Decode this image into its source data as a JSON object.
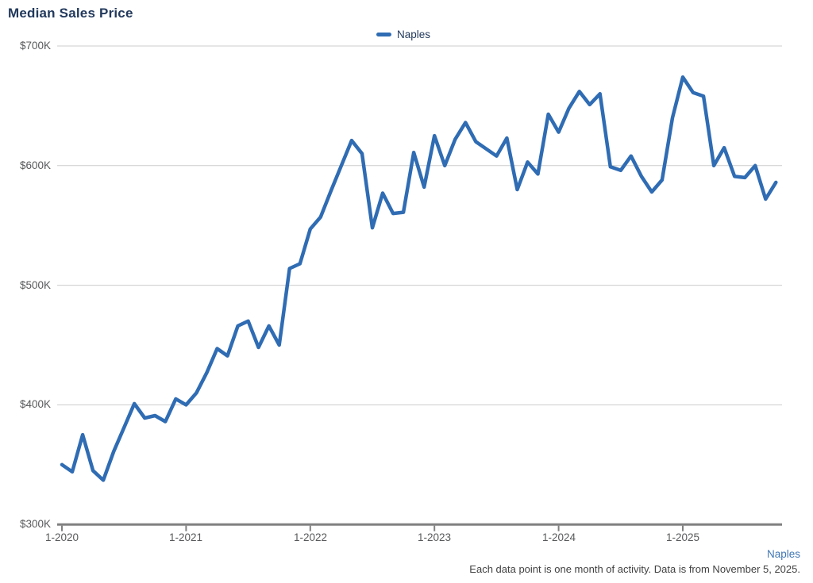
{
  "page": {
    "title": "Median Sales Price"
  },
  "legend": {
    "label": "Naples"
  },
  "footer": {
    "region_link": "Naples",
    "note": "Each data point is one month of activity. Data is from November 5, 2025."
  },
  "colors": {
    "series_blue": "#2F6CB3",
    "title_navy": "#22395C",
    "link_blue": "#4077B5",
    "axis_text_gray": "#58595B",
    "grid_line_gray": "#CCCCCC",
    "axis_line_gray": "#808080",
    "footer_text_gray": "#414141"
  },
  "chart_data": {
    "type": "line",
    "title": "Median Sales Price",
    "xlabel": "",
    "ylabel": "",
    "unit": "USD thousands",
    "ylim": [
      300,
      700
    ],
    "yticks": [
      "$300K",
      "$400K",
      "$500K",
      "$600K",
      "$700K"
    ],
    "xticks": [
      "1-2020",
      "1-2021",
      "1-2022",
      "1-2023",
      "1-2024",
      "1-2025"
    ],
    "grid": true,
    "legend_position": "top-center",
    "note": "Each data point is one month of activity. Data is from November 5, 2025.",
    "x": [
      "1-2020",
      "2-2020",
      "3-2020",
      "4-2020",
      "5-2020",
      "6-2020",
      "7-2020",
      "8-2020",
      "9-2020",
      "10-2020",
      "11-2020",
      "12-2020",
      "1-2021",
      "2-2021",
      "3-2021",
      "4-2021",
      "5-2021",
      "6-2021",
      "7-2021",
      "8-2021",
      "9-2021",
      "10-2021",
      "11-2021",
      "12-2021",
      "1-2022",
      "2-2022",
      "3-2022",
      "4-2022",
      "5-2022",
      "6-2022",
      "7-2022",
      "8-2022",
      "9-2022",
      "10-2022",
      "11-2022",
      "12-2022",
      "1-2023",
      "2-2023",
      "3-2023",
      "4-2023",
      "5-2023",
      "6-2023",
      "7-2023",
      "8-2023",
      "9-2023",
      "10-2023",
      "11-2023",
      "12-2023",
      "1-2024",
      "2-2024",
      "3-2024",
      "4-2024",
      "5-2024",
      "6-2024",
      "7-2024",
      "8-2024",
      "9-2024",
      "10-2024",
      "11-2024",
      "12-2024",
      "1-2025",
      "2-2025",
      "3-2025",
      "4-2025",
      "5-2025",
      "6-2025",
      "7-2025",
      "8-2025",
      "9-2025",
      "10-2025"
    ],
    "series": [
      {
        "name": "Naples",
        "color": "#2F6CB3",
        "values": [
          350,
          344,
          375,
          345,
          337,
          361,
          381,
          401,
          389,
          391,
          386,
          405,
          400,
          410,
          427,
          447,
          441,
          466,
          470,
          448,
          466,
          450,
          514,
          518,
          547,
          557,
          579,
          600,
          621,
          610,
          548,
          577,
          560,
          561,
          611,
          582,
          625,
          600,
          622,
          636,
          620,
          614,
          608,
          623,
          580,
          603,
          593,
          643,
          628,
          648,
          662,
          651,
          660,
          599,
          596,
          608,
          591,
          578,
          588,
          640,
          674,
          661,
          658,
          600,
          615,
          591,
          590,
          600,
          572,
          586
        ]
      }
    ]
  }
}
